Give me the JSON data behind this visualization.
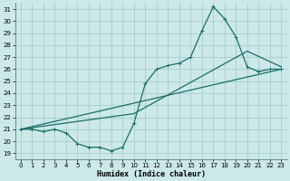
{
  "xlabel": "Humidex (Indice chaleur)",
  "bg_color": "#cce8e8",
  "grid_color": "#a0c8c8",
  "line_color": "#1a6e6a",
  "x_ticks": [
    0,
    1,
    2,
    3,
    4,
    5,
    6,
    7,
    8,
    9,
    10,
    11,
    12,
    13,
    14,
    15,
    16,
    17,
    18,
    19,
    20,
    21,
    22,
    23
  ],
  "y_ticks": [
    19,
    20,
    21,
    22,
    23,
    24,
    25,
    26,
    27,
    28,
    29,
    30,
    31
  ],
  "xlim": [
    -0.5,
    23.5
  ],
  "ylim": [
    18.5,
    31.5
  ],
  "line1_x": [
    0,
    1,
    2,
    3,
    4,
    5,
    6,
    7,
    8,
    9,
    10,
    11,
    12,
    13,
    14,
    15,
    16,
    17,
    18,
    19,
    20,
    21,
    22,
    23
  ],
  "line1_y": [
    21.0,
    21.0,
    20.8,
    21.0,
    20.7,
    19.8,
    19.5,
    19.5,
    19.2,
    19.5,
    21.5,
    24.8,
    26.0,
    26.3,
    26.5,
    27.0,
    29.2,
    31.2,
    30.2,
    28.7,
    26.2,
    25.8,
    26.0,
    26.0
  ],
  "line2_x": [
    0,
    23
  ],
  "line2_y": [
    21.0,
    26.0
  ],
  "line3_x": [
    0,
    10,
    20,
    23
  ],
  "line3_y": [
    21.0,
    22.3,
    27.5,
    26.2
  ]
}
